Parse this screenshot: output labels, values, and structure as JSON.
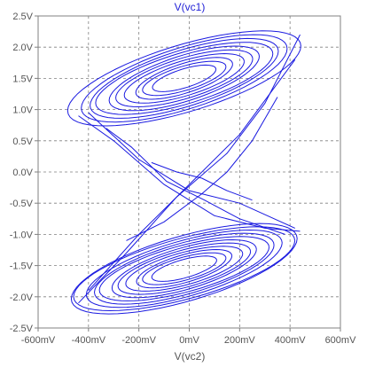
{
  "chart_data": {
    "type": "line",
    "title": "V(vc1)",
    "xlabel": "V(vc2)",
    "ylabel": "",
    "xlim": [
      -600,
      600
    ],
    "ylim": [
      -2.5,
      2.5
    ],
    "x_unit": "mV",
    "y_unit": "V",
    "x_tick_labels": [
      "-600mV",
      "-400mV",
      "-200mV",
      "0mV",
      "200mV",
      "400mV",
      "600mV"
    ],
    "y_tick_labels": [
      "2.5V",
      "2.0V",
      "1.5V",
      "1.0V",
      "0.5V",
      "0.0V",
      "-0.5V",
      "-1.0V",
      "-1.5V",
      "-2.0V",
      "-2.5V"
    ],
    "grid": true,
    "series_color": "#1a1ae0",
    "series": [
      {
        "attractor": "double-scroll",
        "upper_lobe": {
          "center": [
            -20,
            1.5
          ],
          "x_extent": [
            -440,
            460
          ],
          "y_extent": [
            0.8,
            2.35
          ],
          "orbits": 10
        },
        "lower_lobe": {
          "center": [
            -20,
            -1.55
          ],
          "x_extent": [
            -480,
            440
          ],
          "y_extent": [
            -2.35,
            -0.85
          ],
          "orbits": 11
        }
      }
    ]
  }
}
